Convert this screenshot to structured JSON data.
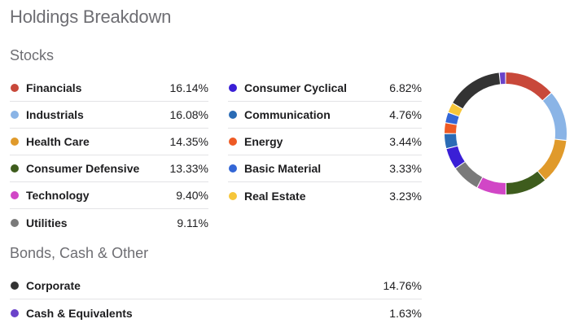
{
  "title": "Holdings Breakdown",
  "stocks": {
    "heading": "Stocks",
    "left": [
      {
        "name": "Financials",
        "pct": "16.14%",
        "color": "#c8483a"
      },
      {
        "name": "Industrials",
        "pct": "16.08%",
        "color": "#8ab4e6"
      },
      {
        "name": "Health Care",
        "pct": "14.35%",
        "color": "#e09a2b"
      },
      {
        "name": "Consumer Defensive",
        "pct": "13.33%",
        "color": "#3e5c1d"
      },
      {
        "name": "Technology",
        "pct": "9.40%",
        "color": "#d146c6"
      },
      {
        "name": "Utilities",
        "pct": "9.11%",
        "color": "#7a7a7a"
      }
    ],
    "right": [
      {
        "name": "Consumer Cyclical",
        "pct": "6.82%",
        "color": "#3a1fd6"
      },
      {
        "name": "Communication",
        "pct": "4.76%",
        "color": "#2a6bb5"
      },
      {
        "name": "Energy",
        "pct": "3.44%",
        "color": "#ee5a24"
      },
      {
        "name": "Basic Material",
        "pct": "3.33%",
        "color": "#3366d6"
      },
      {
        "name": "Real Estate",
        "pct": "3.23%",
        "color": "#f6c63a"
      }
    ]
  },
  "bonds": {
    "heading": "Bonds, Cash & Other",
    "items": [
      {
        "name": "Corporate",
        "pct": "14.76%",
        "color": "#333333"
      },
      {
        "name": "Cash & Equivalents",
        "pct": "1.63%",
        "color": "#6a42c9"
      }
    ]
  },
  "donut": {
    "segments": [
      {
        "label": "Financials",
        "value": 13.18,
        "color": "#c8483a"
      },
      {
        "label": "Industrials",
        "value": 13.13,
        "color": "#8ab4e6"
      },
      {
        "label": "Health Care",
        "value": 11.72,
        "color": "#e09a2b"
      },
      {
        "label": "Consumer Defensive",
        "value": 10.88,
        "color": "#3e5c1d"
      },
      {
        "label": "Technology",
        "value": 7.67,
        "color": "#d146c6"
      },
      {
        "label": "Utilities",
        "value": 7.44,
        "color": "#7a7a7a"
      },
      {
        "label": "Consumer Cyclical",
        "value": 5.57,
        "color": "#3a1fd6"
      },
      {
        "label": "Communication",
        "value": 3.89,
        "color": "#2a6bb5"
      },
      {
        "label": "Energy",
        "value": 2.81,
        "color": "#ee5a24"
      },
      {
        "label": "Basic Material",
        "value": 2.72,
        "color": "#3366d6"
      },
      {
        "label": "Real Estate",
        "value": 2.64,
        "color": "#f6c63a"
      },
      {
        "label": "Corporate",
        "value": 14.76,
        "color": "#333333"
      },
      {
        "label": "Cash & Equivalents",
        "value": 1.63,
        "color": "#6a42c9"
      }
    ]
  }
}
